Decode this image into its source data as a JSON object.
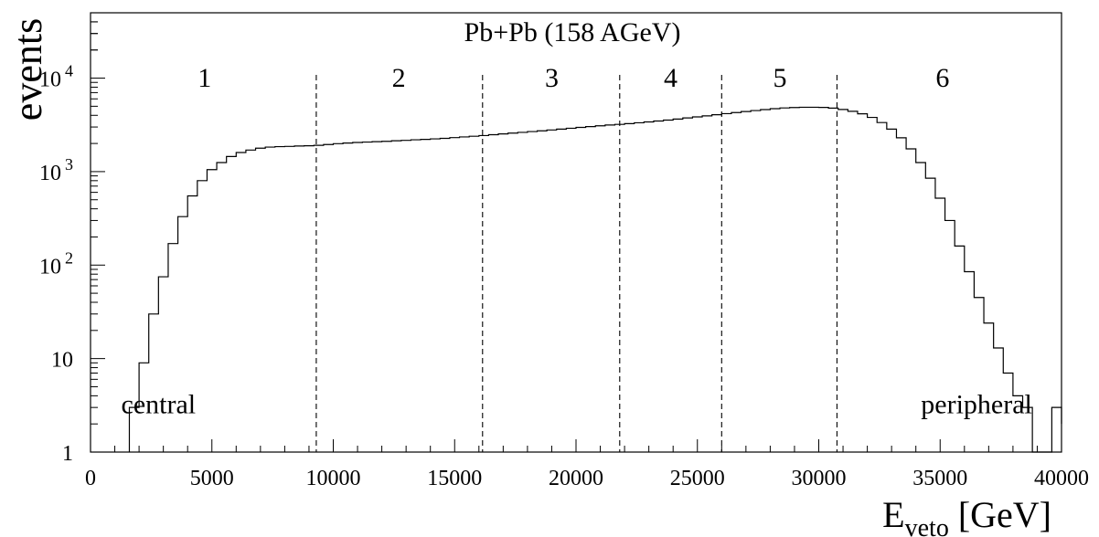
{
  "chart_data": {
    "type": "histogram",
    "title": "Pb+Pb (158 AGeV)",
    "xlabel_main": "E",
    "xlabel_sub": "veto",
    "xlabel_unit": " [GeV]",
    "ylabel": "events",
    "xlim": [
      0,
      40000
    ],
    "ylim": [
      1,
      50000
    ],
    "yscale": "log",
    "grid": false,
    "bin_width": 400,
    "x_ticks": [
      0,
      5000,
      10000,
      15000,
      20000,
      25000,
      30000,
      35000,
      40000
    ],
    "x_tick_labels": [
      "0",
      "5000",
      "10000",
      "15000",
      "20000",
      "25000",
      "30000",
      "35000",
      "40000"
    ],
    "y_ticks": [
      {
        "value": 1,
        "base": "1",
        "exp": ""
      },
      {
        "value": 10,
        "base": "10",
        "exp": ""
      },
      {
        "value": 100,
        "base": "10",
        "exp": "2"
      },
      {
        "value": 1000,
        "base": "10",
        "exp": "3"
      },
      {
        "value": 10000,
        "base": "10",
        "exp": "4"
      }
    ],
    "bins": [
      [
        1600,
        3
      ],
      [
        2000,
        9
      ],
      [
        2400,
        30
      ],
      [
        2800,
        75
      ],
      [
        3200,
        170
      ],
      [
        3600,
        330
      ],
      [
        4000,
        550
      ],
      [
        4400,
        800
      ],
      [
        4800,
        1050
      ],
      [
        5200,
        1250
      ],
      [
        5600,
        1450
      ],
      [
        6000,
        1600
      ],
      [
        6400,
        1700
      ],
      [
        6800,
        1780
      ],
      [
        7200,
        1830
      ],
      [
        7600,
        1850
      ],
      [
        8000,
        1860
      ],
      [
        8400,
        1880
      ],
      [
        8800,
        1890
      ],
      [
        9200,
        1910
      ],
      [
        9600,
        1950
      ],
      [
        10000,
        1990
      ],
      [
        10400,
        2020
      ],
      [
        10800,
        2050
      ],
      [
        11200,
        2070
      ],
      [
        11600,
        2090
      ],
      [
        12000,
        2110
      ],
      [
        12400,
        2140
      ],
      [
        12800,
        2160
      ],
      [
        13200,
        2190
      ],
      [
        13600,
        2210
      ],
      [
        14000,
        2240
      ],
      [
        14400,
        2270
      ],
      [
        14800,
        2310
      ],
      [
        15200,
        2350
      ],
      [
        15600,
        2390
      ],
      [
        16000,
        2430
      ],
      [
        16400,
        2480
      ],
      [
        16800,
        2530
      ],
      [
        17200,
        2580
      ],
      [
        17600,
        2630
      ],
      [
        18000,
        2680
      ],
      [
        18400,
        2730
      ],
      [
        18800,
        2790
      ],
      [
        19200,
        2850
      ],
      [
        19600,
        2910
      ],
      [
        20000,
        2970
      ],
      [
        20400,
        3030
      ],
      [
        20800,
        3090
      ],
      [
        21200,
        3150
      ],
      [
        21600,
        3200
      ],
      [
        22000,
        3260
      ],
      [
        22400,
        3330
      ],
      [
        22800,
        3400
      ],
      [
        23200,
        3480
      ],
      [
        23600,
        3560
      ],
      [
        24000,
        3650
      ],
      [
        24400,
        3750
      ],
      [
        24800,
        3850
      ],
      [
        25200,
        3950
      ],
      [
        25600,
        4060
      ],
      [
        26000,
        4170
      ],
      [
        26400,
        4280
      ],
      [
        26800,
        4390
      ],
      [
        27200,
        4500
      ],
      [
        27600,
        4610
      ],
      [
        28000,
        4710
      ],
      [
        28400,
        4800
      ],
      [
        28800,
        4850
      ],
      [
        29200,
        4880
      ],
      [
        29600,
        4880
      ],
      [
        30000,
        4860
      ],
      [
        30400,
        4780
      ],
      [
        30800,
        4620
      ],
      [
        31200,
        4420
      ],
      [
        31600,
        4150
      ],
      [
        32000,
        3800
      ],
      [
        32400,
        3350
      ],
      [
        32800,
        2850
      ],
      [
        33200,
        2300
      ],
      [
        33600,
        1750
      ],
      [
        34000,
        1250
      ],
      [
        34400,
        850
      ],
      [
        34800,
        520
      ],
      [
        35200,
        300
      ],
      [
        35600,
        160
      ],
      [
        36000,
        85
      ],
      [
        36400,
        45
      ],
      [
        36800,
        24
      ],
      [
        37200,
        13
      ],
      [
        37600,
        7
      ],
      [
        38000,
        4
      ],
      [
        38400,
        3
      ],
      [
        38800,
        1
      ],
      [
        39200,
        1
      ],
      [
        39600,
        3
      ],
      [
        40000,
        2
      ]
    ],
    "boundaries": [
      9300,
      16150,
      21800,
      26000,
      30750
    ],
    "region_labels": [
      {
        "label": "1",
        "x": 4700
      },
      {
        "label": "2",
        "x": 12700
      },
      {
        "label": "3",
        "x": 19000
      },
      {
        "label": "4",
        "x": 23900
      },
      {
        "label": "5",
        "x": 28400
      },
      {
        "label": "6",
        "x": 35100
      }
    ],
    "annotations": [
      {
        "text": "central",
        "x": 2800,
        "y": 2.6
      },
      {
        "text": "peripheral",
        "x": 36500,
        "y": 2.6
      }
    ]
  }
}
